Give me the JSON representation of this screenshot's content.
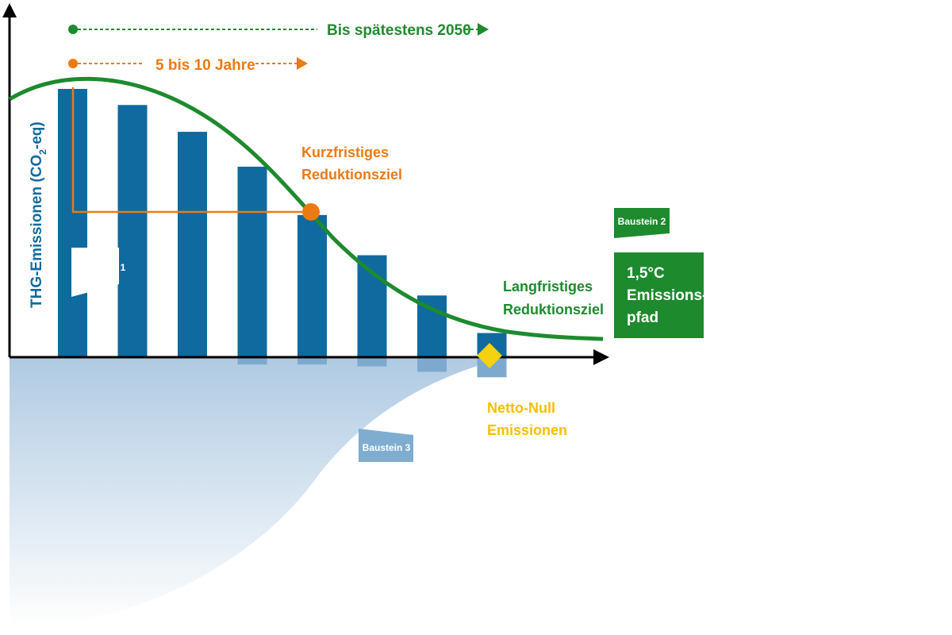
{
  "colors": {
    "bar": "#0e6a9f",
    "bar_negative": "#7da9cf",
    "curve": "#1e8a2e",
    "orange": "#ec7a13",
    "yellow": "#f5d10f",
    "green_box": "#1e8a2e",
    "blue_tag": "#7eadd0",
    "axis": "#000000",
    "area_top": "#a6c4df"
  },
  "timeline": {
    "long_label": "Bis spätestens 2050",
    "short_label": "5 bis 10 Jahre"
  },
  "y_axis_label": {
    "prefix": "THG-Emissionen (CO",
    "subscript": "2",
    "suffix": "-eq)"
  },
  "annotations": {
    "short_term_line1": "Kurzfristiges",
    "short_term_line2": "Reduktionsziel",
    "long_term_line1": "Langfristiges",
    "long_term_line2": "Reduktionsziel",
    "net_zero_line1": "Netto-Null",
    "net_zero_line2": "Emissionen"
  },
  "tags": {
    "baustein1": "Baustein 1",
    "baustein2": "Baustein 2",
    "baustein3": "Baustein 3"
  },
  "path_box": {
    "line1": "1,5°C",
    "line2": "Emissions-",
    "line3": "pfad"
  },
  "chart_data": {
    "type": "bar",
    "bars_relative_height": [
      1.0,
      0.94,
      0.84,
      0.71,
      0.53,
      0.38,
      0.23,
      0.09
    ],
    "negative_bars_relative_depth": [
      0,
      0,
      0,
      0.04,
      0.04,
      0.05,
      0.08,
      0.11
    ],
    "curve": "emissions path peaking early and flattening to net zero"
  }
}
